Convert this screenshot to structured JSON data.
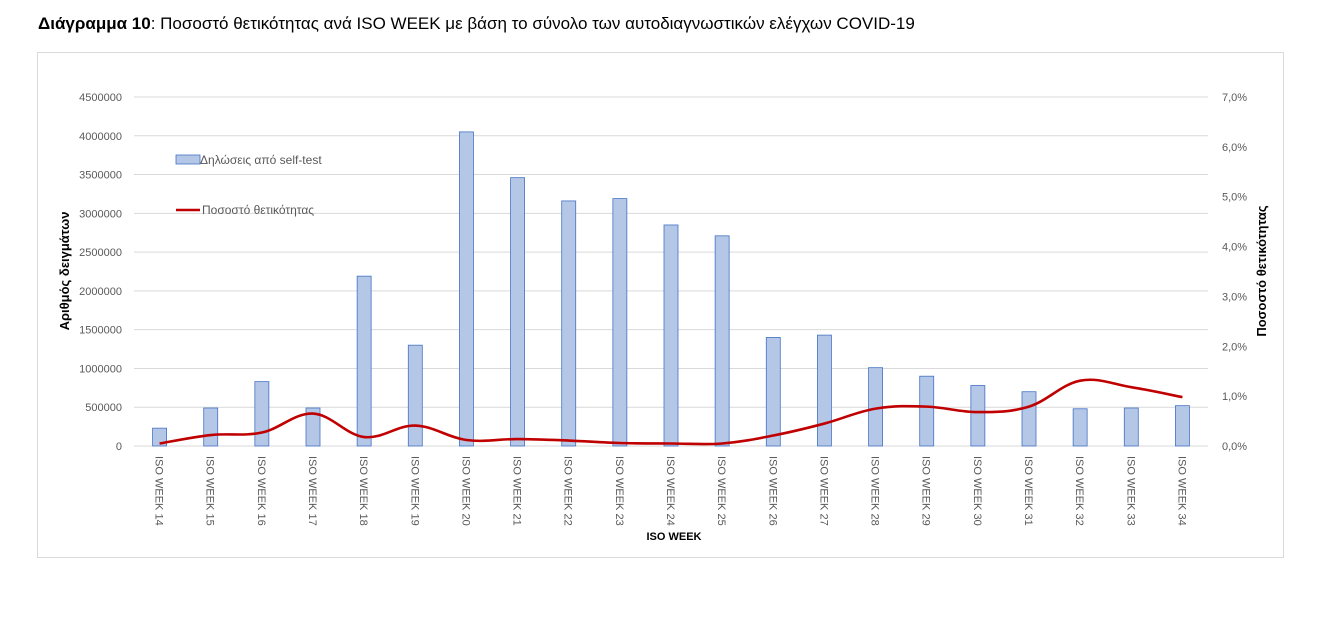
{
  "caption": {
    "bold": "Διάγραμμα 10",
    "rest": ": Ποσοστό θετικότητας ανά ISO WEEK με βάση το σύνολο των αυτοδιαγνωστικών ελέγχων COVID-19"
  },
  "chart_data": {
    "type": "bar",
    "xlabel": "ISO WEEK",
    "ylabel": "Αριθμός δειγμάτων",
    "y2label": "Ποσοστό θετικότητας",
    "ylim": [
      0,
      4500000
    ],
    "y_ticks": [
      "0",
      "500000",
      "1000000",
      "1500000",
      "2000000",
      "2500000",
      "3000000",
      "3500000",
      "4000000",
      "4500000"
    ],
    "y2lim": [
      0,
      7.0
    ],
    "y2_ticks": [
      "0,0%",
      "1,0%",
      "2,0%",
      "3,0%",
      "4,0%",
      "5,0%",
      "6,0%",
      "7,0%"
    ],
    "grid": true,
    "legend_position": "top-left",
    "categories": [
      "ISO WEEK 14",
      "ISO WEEK 15",
      "ISO WEEK 16",
      "ISO WEEK 17",
      "ISO WEEK 18",
      "ISO WEEK 19",
      "ISO WEEK 20",
      "ISO WEEK 21",
      "ISO WEEK 22",
      "ISO WEEK 23",
      "ISO WEEK 24",
      "ISO WEEK 25",
      "ISO WEEK 26",
      "ISO WEEK 27",
      "ISO WEEK 28",
      "ISO WEEK 29",
      "ISO WEEK 30",
      "ISO WEEK 31",
      "ISO WEEK 32",
      "ISO WEEK 33",
      "ISO WEEK 34"
    ],
    "series": [
      {
        "name": "Δηλώσεις από self-test",
        "type": "bar",
        "axis": "left",
        "color": "#b4c7e7",
        "stroke": "#4472c4",
        "values": [
          230000,
          490000,
          830000,
          490000,
          2190000,
          1300000,
          4050000,
          3460000,
          3160000,
          3190000,
          2850000,
          2710000,
          1400000,
          1430000,
          1010000,
          900000,
          780000,
          700000,
          480000,
          490000,
          520000
        ]
      },
      {
        "name": "Ποσοστό θετικότητας",
        "type": "line",
        "axis": "right",
        "color": "#c00000",
        "values": [
          0.05,
          0.22,
          0.27,
          0.65,
          0.18,
          0.41,
          0.12,
          0.14,
          0.11,
          0.06,
          0.05,
          0.05,
          0.21,
          0.45,
          0.75,
          0.79,
          0.68,
          0.79,
          1.31,
          1.18,
          0.98
        ]
      }
    ]
  }
}
